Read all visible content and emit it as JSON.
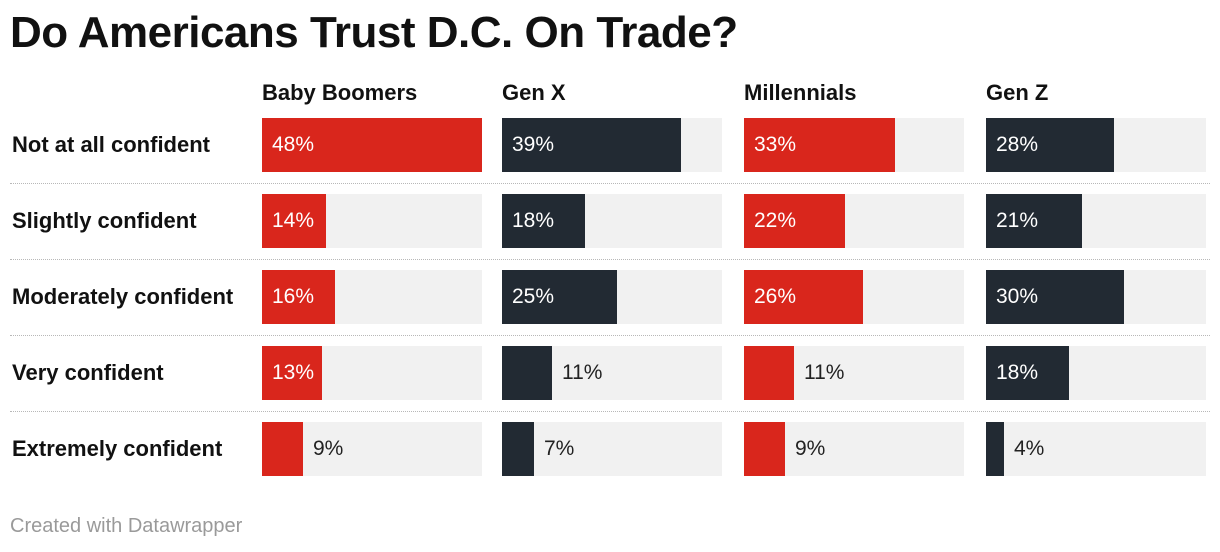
{
  "title": "Do Americans Trust D.C. On Trade?",
  "footer": "Created with Datawrapper",
  "colors": {
    "red": "#d9261c",
    "dark": "#222a33",
    "track": "#f1f1f1"
  },
  "chart_data": {
    "type": "bar",
    "title": "Do Americans Trust D.C. On Trade?",
    "categories": [
      "Not at all confident",
      "Slightly confident",
      "Moderately confident",
      "Very confident",
      "Extremely confident"
    ],
    "series": [
      {
        "name": "Baby Boomers",
        "color": "#d9261c",
        "values": [
          48,
          14,
          16,
          13,
          9
        ]
      },
      {
        "name": "Gen X",
        "color": "#222a33",
        "values": [
          39,
          18,
          25,
          11,
          7
        ]
      },
      {
        "name": "Millennials",
        "color": "#d9261c",
        "values": [
          33,
          22,
          26,
          11,
          9
        ]
      },
      {
        "name": "Gen Z",
        "color": "#222a33",
        "values": [
          28,
          21,
          30,
          18,
          4
        ]
      }
    ],
    "value_suffix": "%",
    "xlim": [
      0,
      48
    ]
  }
}
